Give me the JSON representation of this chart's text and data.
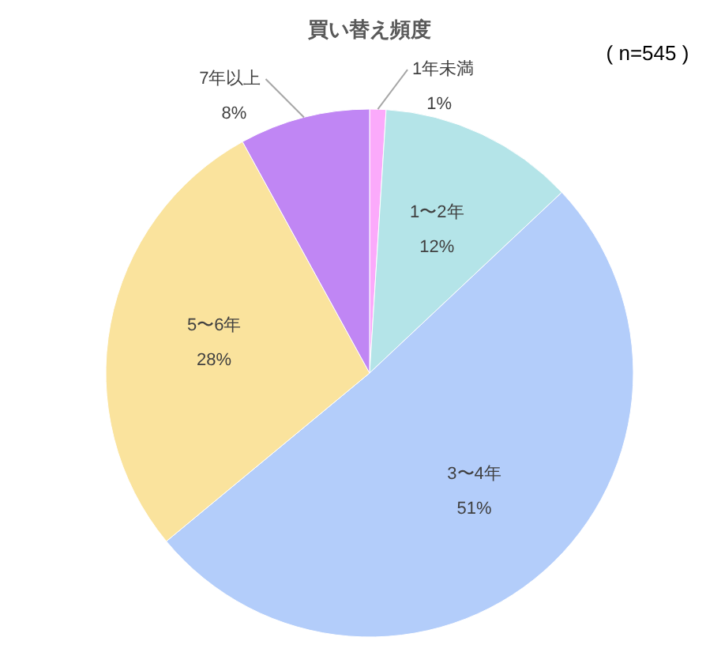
{
  "chart_data": {
    "type": "pie",
    "title": "買い替え頻度",
    "annotations": [
      "( n=545 )"
    ],
    "categories": [
      "1年未満",
      "1〜2年",
      "3〜4年",
      "5〜6年",
      "7年以上"
    ],
    "values": [
      1,
      12,
      51,
      28,
      8
    ],
    "value_labels": [
      "1%",
      "12%",
      "51%",
      "28%",
      "8%"
    ],
    "colors": [
      "#fbaafb",
      "#b4e4e8",
      "#b3cdfa",
      "#fae39d",
      "#c086f4"
    ]
  }
}
